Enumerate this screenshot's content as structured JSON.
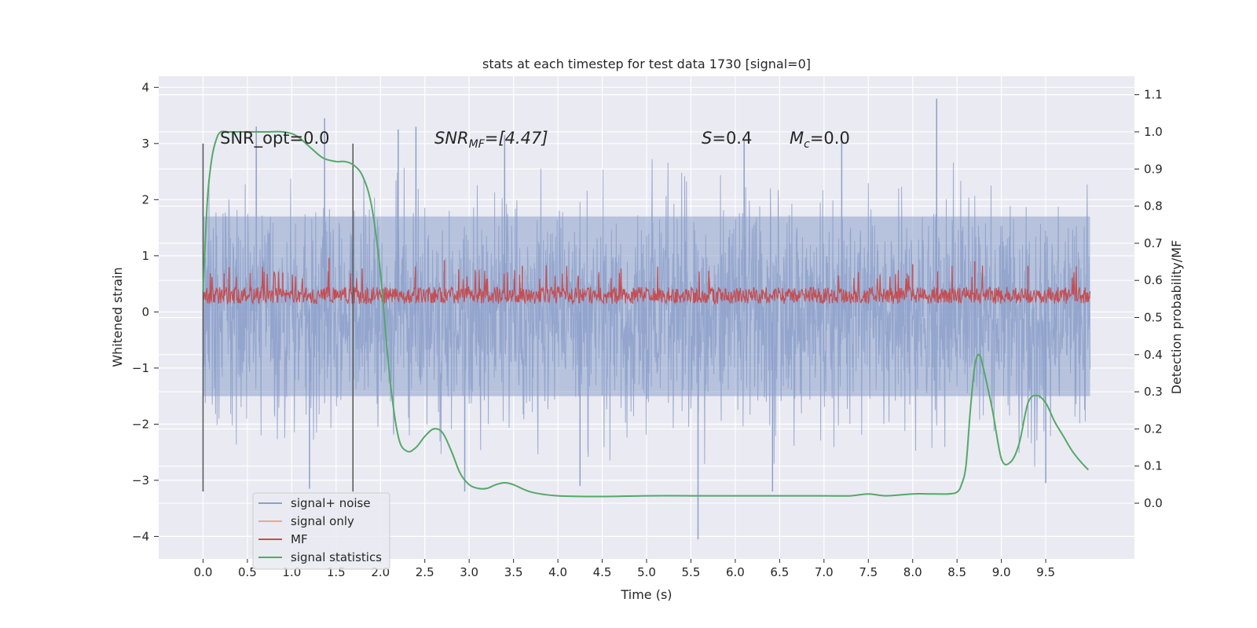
{
  "chart_data": {
    "type": "line",
    "title": "stats at each timestep for test data 1730 [signal=0]",
    "xlabel": "Time (s)",
    "ylabel": "Whitened strain",
    "ylabel_right": "Detection probability/MF",
    "xlim": [
      -0.5,
      10.5
    ],
    "ylim": [
      -4.4,
      4.2
    ],
    "ylim_right": [
      -0.15,
      1.15
    ],
    "x_ticks": [
      0.0,
      0.5,
      1.0,
      1.5,
      2.0,
      2.5,
      3.0,
      3.5,
      4.0,
      4.5,
      5.0,
      5.5,
      6.0,
      6.5,
      7.0,
      7.5,
      8.0,
      8.5,
      9.0,
      9.5
    ],
    "x_tick_labels": [
      "0.0",
      "0.5",
      "1.0",
      "1.5",
      "2.0",
      "2.5",
      "3.0",
      "3.5",
      "4.0",
      "4.5",
      "5.0",
      "5.5",
      "6.0",
      "6.5",
      "7.0",
      "7.5",
      "8.0",
      "8.5",
      "9.0",
      "9.5"
    ],
    "y_ticks": [
      -4,
      -3,
      -2,
      -1,
      0,
      1,
      2,
      3,
      4
    ],
    "y_tick_labels": [
      "−4",
      "−3",
      "−2",
      "−1",
      "0",
      "1",
      "2",
      "3",
      "4"
    ],
    "y_right_ticks": [
      0.0,
      0.1,
      0.2,
      0.3,
      0.4,
      0.5,
      0.6,
      0.7,
      0.8,
      0.9,
      1.0,
      1.1
    ],
    "y_right_tick_labels": [
      "0.0",
      "0.1",
      "0.2",
      "0.3",
      "0.4",
      "0.5",
      "0.6",
      "0.7",
      "0.8",
      "0.9",
      "1.0",
      "1.1"
    ],
    "grid": true,
    "legend_position": "lower-left",
    "legend": [
      {
        "label": "signal+ noise",
        "color": "#8da0cb"
      },
      {
        "label": "signal only",
        "color": "#e8a88a"
      },
      {
        "label": "MF",
        "color": "#c44e52"
      },
      {
        "label": "signal statistics",
        "color": "#55a868"
      }
    ],
    "annotations": {
      "snr_opt": "SNR_opt=0.0",
      "snr_mf_main": "SNR",
      "snr_mf_sub": "MF",
      "snr_mf_rest": "=[4.47]",
      "s_main": "S",
      "s_rest": "=0.4",
      "mc_main": "M",
      "mc_sub": "c",
      "mc_rest": "=0.0"
    },
    "vertical_markers": [
      0.0,
      1.69
    ],
    "vertical_marker_range": [
      -3.2,
      3.0
    ],
    "noise_series": {
      "name": "signal+ noise",
      "x_range": [
        0.0,
        10.0
      ],
      "envelope_upper": 2.4,
      "envelope_lower": -2.4,
      "core_band": [
        -1.5,
        1.7
      ],
      "outliers": [
        {
          "x": 0.6,
          "y": 3.3
        },
        {
          "x": 1.37,
          "y": 3.45
        },
        {
          "x": 8.27,
          "y": 3.8
        },
        {
          "x": 5.58,
          "y": -4.05
        },
        {
          "x": 1.2,
          "y": -3.15
        },
        {
          "x": 2.95,
          "y": -3.2
        },
        {
          "x": 4.25,
          "y": -3.1
        },
        {
          "x": 6.42,
          "y": -3.2
        },
        {
          "x": 9.5,
          "y": -3.05
        },
        {
          "x": 2.2,
          "y": 3.25
        },
        {
          "x": 2.4,
          "y": 3.3
        },
        {
          "x": 3.4,
          "y": 3.15
        },
        {
          "x": 7.2,
          "y": 3.1
        },
        {
          "x": 6.1,
          "y": 3.05
        }
      ]
    },
    "mf_series": {
      "name": "MF",
      "x_range": [
        0.0,
        10.0
      ],
      "base": 0.28,
      "amplitude": 0.3,
      "peaks": [
        {
          "x": 1.42,
          "y": 0.96
        },
        {
          "x": 2.72,
          "y": 0.92
        },
        {
          "x": 3.6,
          "y": 0.82
        },
        {
          "x": 8.0,
          "y": 0.85
        },
        {
          "x": 8.7,
          "y": 0.9
        },
        {
          "x": 9.3,
          "y": 0.82
        },
        {
          "x": 0.9,
          "y": 0.7
        },
        {
          "x": 5.7,
          "y": 0.73
        }
      ]
    },
    "statistics_series": {
      "name": "signal statistics",
      "axis": "right",
      "x": [
        0.0,
        0.05,
        0.1,
        0.15,
        0.2,
        0.3,
        0.5,
        0.7,
        0.9,
        1.05,
        1.2,
        1.35,
        1.5,
        1.6,
        1.7,
        1.8,
        1.9,
        2.0,
        2.1,
        2.2,
        2.3,
        2.4,
        2.5,
        2.6,
        2.7,
        2.8,
        2.9,
        3.0,
        3.1,
        3.2,
        3.3,
        3.4,
        3.5,
        3.7,
        4.0,
        4.5,
        5.0,
        5.5,
        6.0,
        6.5,
        7.0,
        7.3,
        7.5,
        7.7,
        8.0,
        8.2,
        8.4,
        8.5,
        8.55,
        8.6,
        8.65,
        8.7,
        8.75,
        8.8,
        8.9,
        9.0,
        9.1,
        9.2,
        9.3,
        9.4,
        9.5,
        9.6,
        9.7,
        9.8,
        9.9,
        9.98
      ],
      "y": [
        0.57,
        0.82,
        0.93,
        0.98,
        1.0,
        1.0,
        1.0,
        1.0,
        1.0,
        0.99,
        0.96,
        0.93,
        0.92,
        0.92,
        0.91,
        0.88,
        0.8,
        0.62,
        0.35,
        0.18,
        0.14,
        0.15,
        0.18,
        0.2,
        0.19,
        0.14,
        0.08,
        0.05,
        0.04,
        0.04,
        0.05,
        0.055,
        0.05,
        0.03,
        0.02,
        0.018,
        0.02,
        0.02,
        0.02,
        0.02,
        0.02,
        0.02,
        0.025,
        0.02,
        0.025,
        0.025,
        0.025,
        0.03,
        0.05,
        0.1,
        0.25,
        0.37,
        0.4,
        0.36,
        0.25,
        0.12,
        0.11,
        0.16,
        0.27,
        0.29,
        0.27,
        0.22,
        0.18,
        0.14,
        0.11,
        0.09
      ]
    }
  }
}
